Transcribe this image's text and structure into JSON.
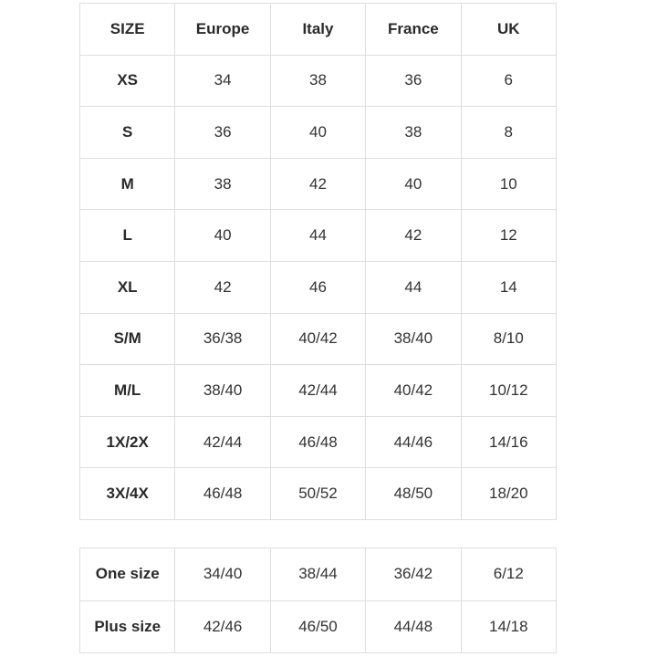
{
  "table": {
    "header": [
      "SIZE",
      "Europe",
      "Italy",
      "France",
      "UK"
    ],
    "rows": [
      [
        "XS",
        34,
        38,
        36,
        6
      ],
      [
        "S",
        36,
        40,
        38,
        8
      ],
      [
        "M",
        38,
        42,
        40,
        10
      ],
      [
        "L",
        40,
        44,
        42,
        12
      ],
      [
        "XL",
        42,
        46,
        44,
        14
      ],
      [
        "S/M",
        "36/38",
        "40/42",
        "38/40",
        "8/10"
      ],
      [
        "M/L",
        "38/40",
        "42/44",
        "40/42",
        "10/12"
      ],
      [
        "1X/2X",
        "42/44",
        "46/48",
        "44/46",
        "14/16"
      ],
      [
        "3X/4X",
        "46/48",
        "50/52",
        "48/50",
        "18/20"
      ]
    ]
  },
  "table2": {
    "rows": [
      [
        "One size",
        "34/40",
        "38/44",
        "36/42",
        "6/12"
      ],
      [
        "Plus size",
        "42/46",
        "46/50",
        "44/48",
        "14/18"
      ]
    ]
  }
}
